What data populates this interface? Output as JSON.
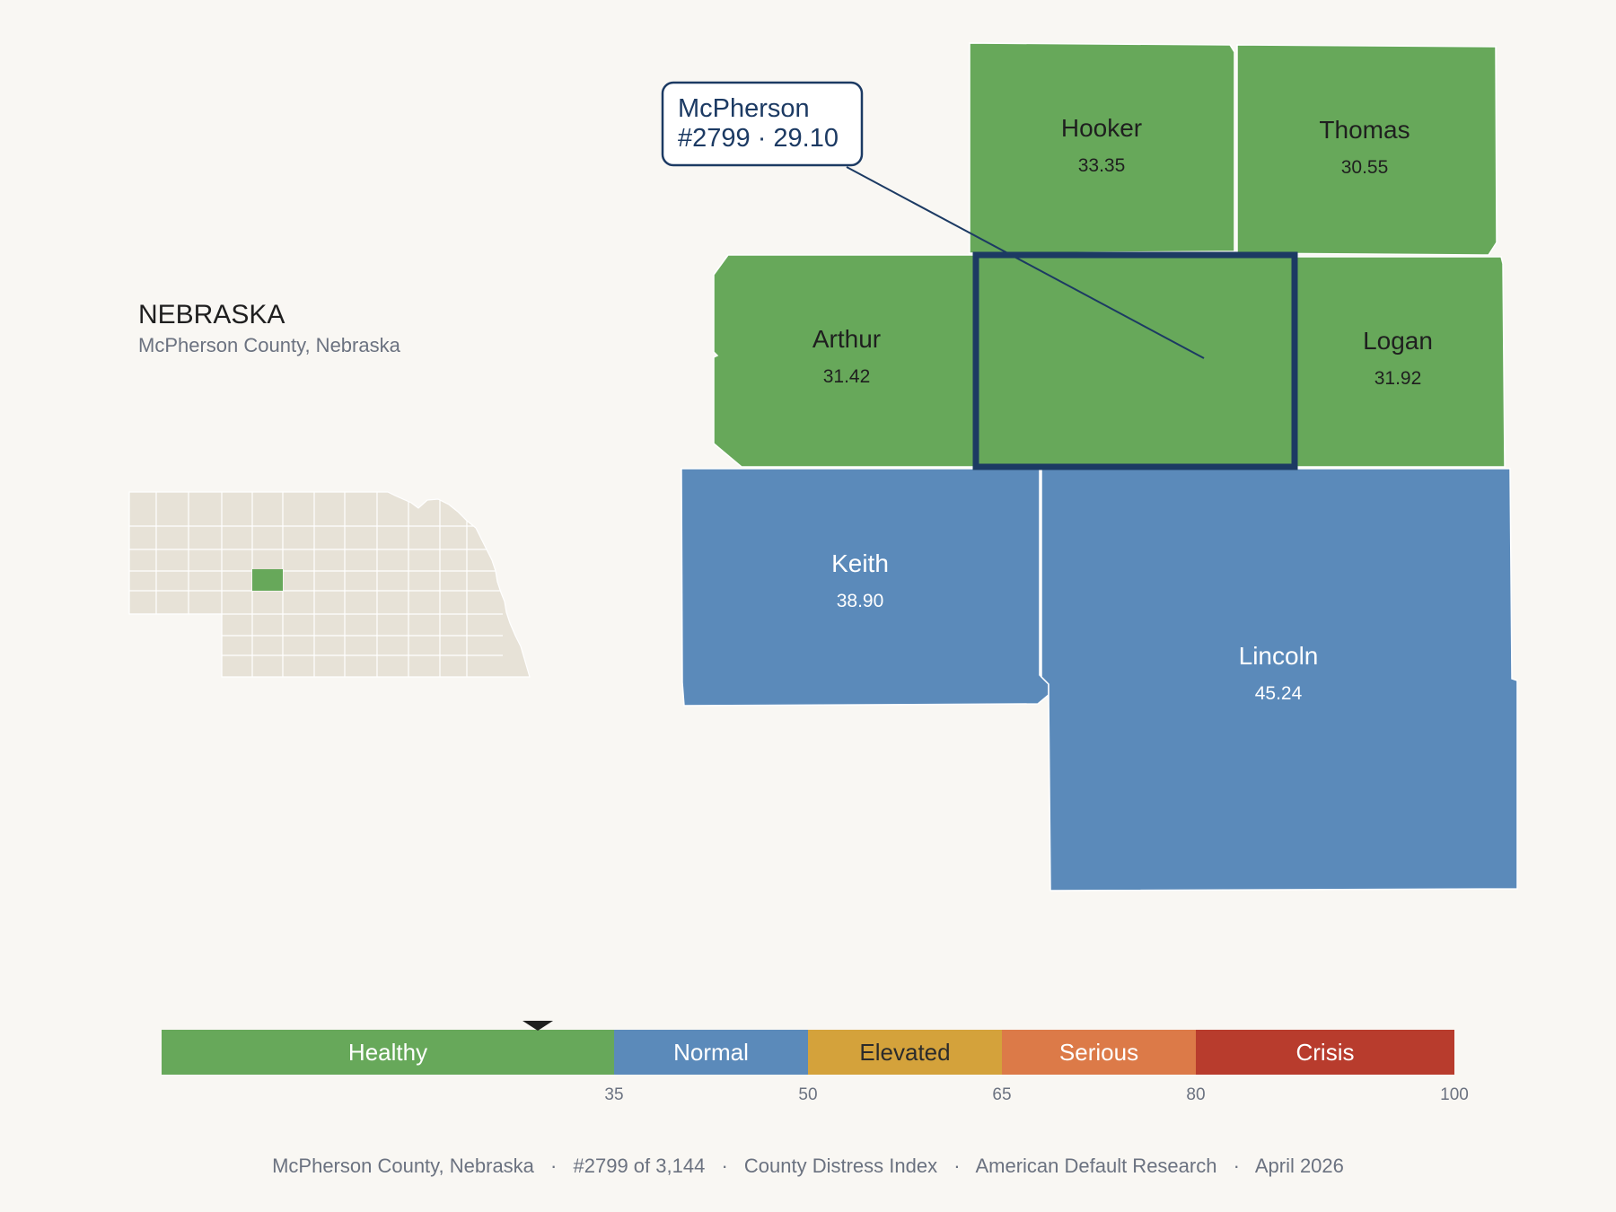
{
  "state": {
    "name": "NEBRASKA",
    "subtitle": "McPherson County, Nebraska"
  },
  "colors": {
    "healthy": "#67a85a",
    "normal": "#5b8aba",
    "elevated": "#d4a23b",
    "serious": "#dc7a48",
    "crisis": "#b83c2d",
    "inset_fill": "#e7e2d7",
    "highlight_stroke": "#1c3a63"
  },
  "focus": {
    "name": "McPherson",
    "rank_text": "#2799 · 29.10",
    "score": 29.1
  },
  "counties": [
    {
      "id": "hooker",
      "name": "Hooker",
      "value": "33.35",
      "category": "healthy"
    },
    {
      "id": "thomas",
      "name": "Thomas",
      "value": "30.55",
      "category": "healthy"
    },
    {
      "id": "arthur",
      "name": "Arthur",
      "value": "31.42",
      "category": "healthy"
    },
    {
      "id": "logan",
      "name": "Logan",
      "value": "31.92",
      "category": "healthy"
    },
    {
      "id": "keith",
      "name": "Keith",
      "value": "38.90",
      "category": "normal"
    },
    {
      "id": "lincoln",
      "name": "Lincoln",
      "value": "45.24",
      "category": "normal"
    }
  ],
  "legend": {
    "min": 0,
    "max": 100,
    "bands": [
      {
        "label": "Healthy",
        "from": 0,
        "to": 35,
        "color": "#67a85a",
        "text_color": "#ffffff"
      },
      {
        "label": "Normal",
        "from": 35,
        "to": 50,
        "color": "#5b8aba",
        "text_color": "#ffffff"
      },
      {
        "label": "Elevated",
        "from": 50,
        "to": 65,
        "color": "#d4a23b",
        "text_color": "#2b2b2b"
      },
      {
        "label": "Serious",
        "from": 65,
        "to": 80,
        "color": "#dc7a48",
        "text_color": "#ffffff"
      },
      {
        "label": "Crisis",
        "from": 80,
        "to": 100,
        "color": "#b83c2d",
        "text_color": "#ffffff"
      }
    ],
    "ticks": [
      "35",
      "50",
      "65",
      "80",
      "100"
    ],
    "marker_value": 29.1
  },
  "footer": {
    "items": [
      "McPherson County, Nebraska",
      "#2799 of 3,144",
      "County Distress Index",
      "American Default Research",
      "April 2026"
    ],
    "separator": "·"
  }
}
